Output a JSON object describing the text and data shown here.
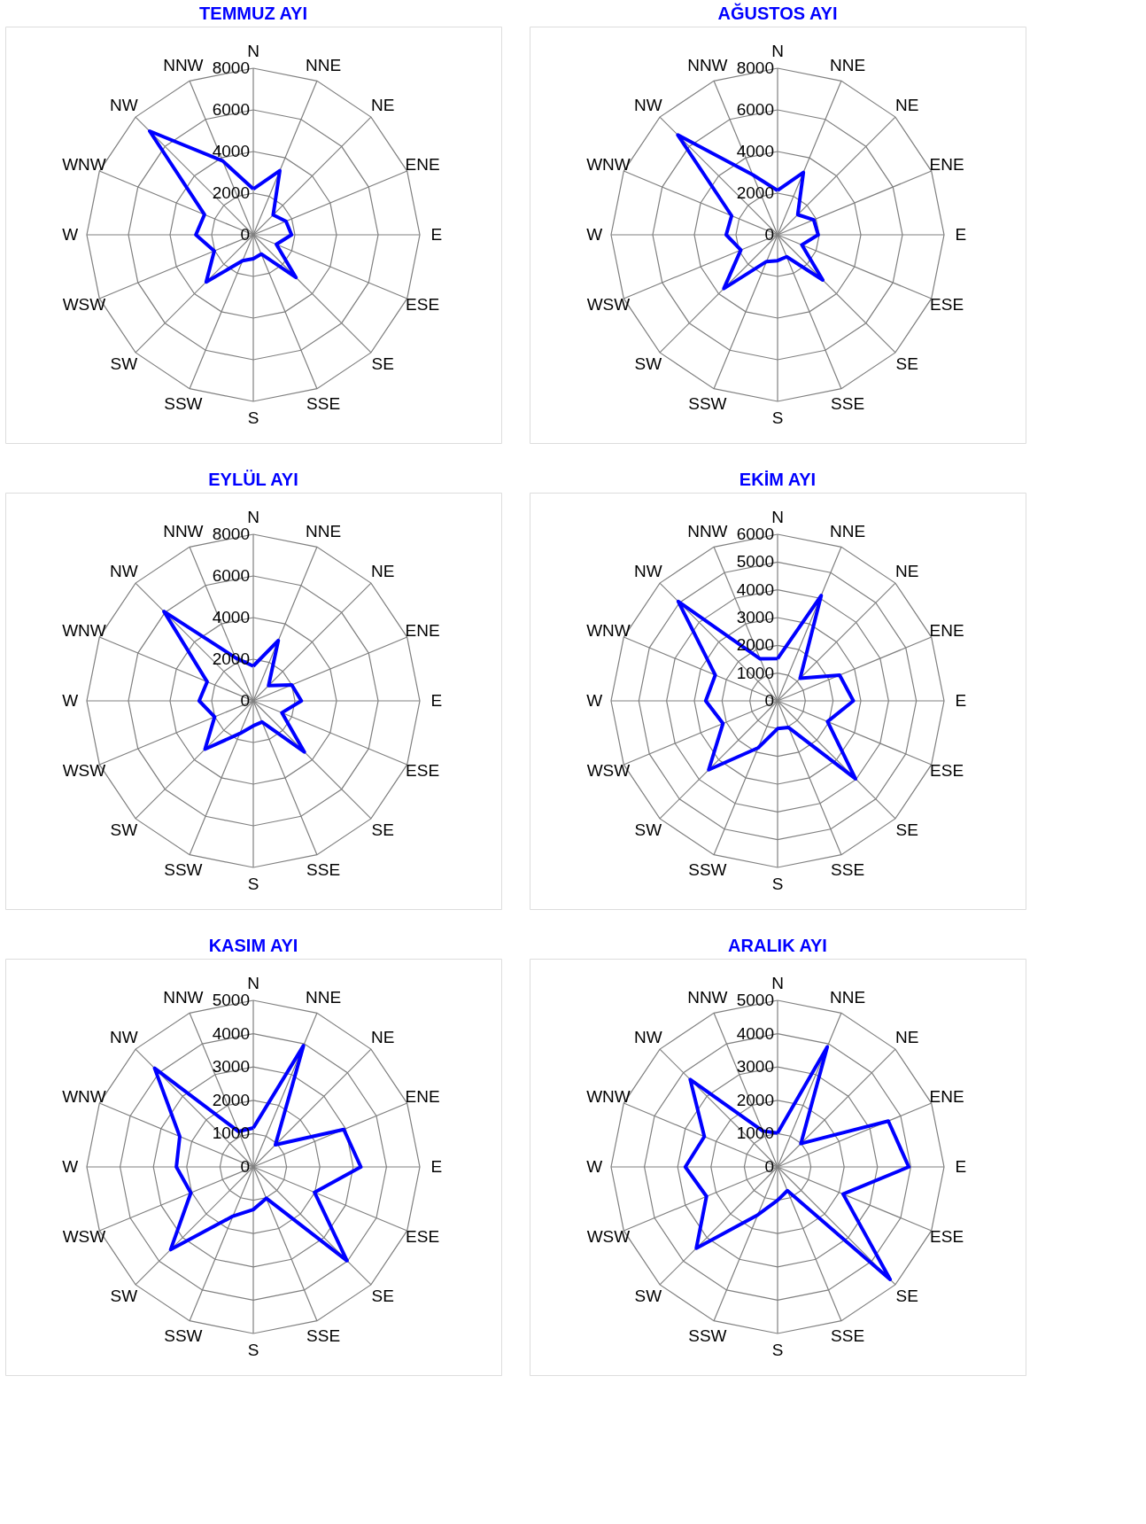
{
  "chart_data": [
    {
      "type": "radar",
      "title": "TEMMUZ AYI",
      "categories": [
        "N",
        "NNE",
        "NE",
        "ENE",
        "E",
        "ESE",
        "SE",
        "SSE",
        "S",
        "SSW",
        "SW",
        "WSW",
        "W",
        "WNW",
        "NW",
        "NNW"
      ],
      "ylim": [
        0,
        8000
      ],
      "yticks": [
        0,
        2000,
        4000,
        6000,
        8000
      ],
      "grid": true,
      "series": [
        {
          "color": "#0000ff",
          "values": [
            2200,
            3330,
            1350,
            1700,
            1840,
            1200,
            2900,
            1000,
            1150,
            1350,
            3200,
            2030,
            2760,
            2540,
            7040,
            3840
          ]
        }
      ]
    },
    {
      "type": "radar",
      "title": "AĞUSTOS AYI",
      "categories": [
        "N",
        "NNE",
        "NE",
        "ENE",
        "E",
        "ESE",
        "SE",
        "SSE",
        "S",
        "SSW",
        "SW",
        "WSW",
        "W",
        "WNW",
        "NW",
        "NNW"
      ],
      "ylim": [
        0,
        8000
      ],
      "yticks": [
        0,
        2000,
        4000,
        6000,
        8000
      ],
      "grid": true,
      "series": [
        {
          "color": "#0000ff",
          "values": [
            2130,
            3240,
            1370,
            1880,
            1950,
            1260,
            3070,
            1140,
            1240,
            1390,
            3650,
            1910,
            2470,
            2390,
            6780,
            3120
          ]
        }
      ]
    },
    {
      "type": "radar",
      "title": "EYLÜL AYI",
      "categories": [
        "N",
        "NNE",
        "NE",
        "ENE",
        "E",
        "ESE",
        "SE",
        "SSE",
        "S",
        "SSW",
        "SW",
        "WSW",
        "W",
        "WNW",
        "NW",
        "NNW"
      ],
      "ylim": [
        0,
        8000
      ],
      "yticks": [
        0,
        2000,
        4000,
        6000,
        8000
      ],
      "grid": true,
      "series": [
        {
          "color": "#0000ff",
          "values": [
            1670,
            3140,
            1040,
            2000,
            2310,
            1490,
            3470,
            1100,
            1200,
            1700,
            3280,
            2010,
            2600,
            2400,
            6070,
            2240
          ]
        }
      ]
    },
    {
      "type": "radar",
      "title": "EKİM AYI",
      "categories": [
        "N",
        "NNE",
        "NE",
        "ENE",
        "E",
        "ESE",
        "SE",
        "SSE",
        "S",
        "SSW",
        "SW",
        "WSW",
        "W",
        "WNW",
        "NW",
        "NNW"
      ],
      "ylim": [
        0,
        6000
      ],
      "yticks": [
        0,
        1000,
        2000,
        3000,
        4000,
        5000,
        6000
      ],
      "grid": true,
      "series": [
        {
          "color": "#0000ff",
          "values": [
            1520,
            4110,
            1150,
            2420,
            2730,
            1950,
            3970,
            1040,
            1000,
            1830,
            3510,
            2130,
            2590,
            2430,
            5060,
            1640
          ]
        }
      ]
    },
    {
      "type": "radar",
      "title": "KASIM AYI",
      "categories": [
        "N",
        "NNE",
        "NE",
        "ENE",
        "E",
        "ESE",
        "SE",
        "SSE",
        "S",
        "SSW",
        "SW",
        "WSW",
        "W",
        "WNW",
        "NW",
        "NNW"
      ],
      "ylim": [
        0,
        5000
      ],
      "yticks": [
        0,
        1000,
        2000,
        3000,
        4000,
        5000
      ],
      "grid": true,
      "series": [
        {
          "color": "#0000ff",
          "values": [
            1170,
            3940,
            940,
            2940,
            3230,
            1990,
            3980,
            1020,
            1280,
            1600,
            3510,
            2030,
            2310,
            2390,
            4190,
            1150
          ]
        }
      ]
    },
    {
      "type": "radar",
      "title": "ARALIK AYI",
      "categories": [
        "N",
        "NNE",
        "NE",
        "ENE",
        "E",
        "ESE",
        "SE",
        "SSE",
        "S",
        "SSW",
        "SW",
        "WSW",
        "W",
        "WNW",
        "NW",
        "NNW"
      ],
      "ylim": [
        0,
        5000
      ],
      "yticks": [
        0,
        1000,
        2000,
        3000,
        4000,
        5000
      ],
      "grid": true,
      "series": [
        {
          "color": "#0000ff",
          "values": [
            1020,
            3900,
            990,
            3600,
            3940,
            2130,
            4780,
            770,
            1000,
            1560,
            3450,
            2310,
            2770,
            2380,
            3710,
            1170
          ]
        }
      ]
    }
  ]
}
